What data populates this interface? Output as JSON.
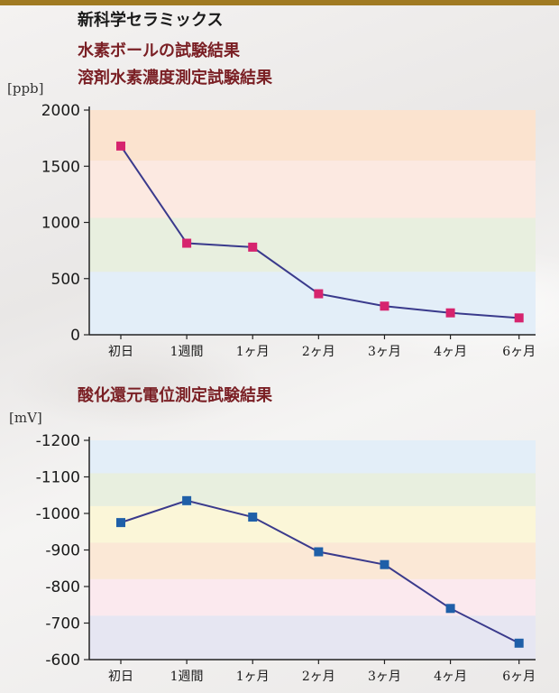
{
  "header": {
    "brand": "新科学セラミックス",
    "subtitle": "水素ボールの試験結果"
  },
  "colors": {
    "top_bar": "#a07a22",
    "title_red": "#7a1f24",
    "line": "#3a3a8c",
    "marker_pink": "#d6246e",
    "marker_blue": "#1f5fa8"
  },
  "chart_data": [
    {
      "type": "line",
      "title": "溶剤水素濃度測定試験結果",
      "unit_label": "[ppb]",
      "categories": [
        "初日",
        "1週間",
        "1ヶ月",
        "2ヶ月",
        "3ヶ月",
        "4ヶ月",
        "6ヶ月"
      ],
      "values": [
        1680,
        815,
        780,
        365,
        255,
        195,
        150
      ],
      "ylim": [
        0,
        2000
      ],
      "yticks": [
        "2000",
        "1500",
        "1000",
        "500",
        "0"
      ],
      "ytick_values": [
        2000,
        1500,
        1000,
        500,
        0
      ],
      "bands": [
        {
          "from": 1550,
          "to": 2000,
          "color": "#fbe3cf"
        },
        {
          "from": 1040,
          "to": 1550,
          "color": "#fce9e1"
        },
        {
          "from": 560,
          "to": 1040,
          "color": "#e8efdf"
        },
        {
          "from": 0,
          "to": 560,
          "color": "#e3eef8"
        }
      ],
      "marker": "square",
      "grid": false
    },
    {
      "type": "line",
      "title": "酸化還元電位測定試験結果",
      "unit_label": "[mV]",
      "categories": [
        "初日",
        "1週間",
        "1ヶ月",
        "2ヶ月",
        "3ヶ月",
        "4ヶ月",
        "6ヶ月"
      ],
      "values": [
        -975,
        -1035,
        -990,
        -895,
        -860,
        -740,
        -645
      ],
      "ylim": [
        -1200,
        -600
      ],
      "reversed_axis": true,
      "yticks": [
        "-1200",
        "-1100",
        "-1000",
        "-900",
        "-800",
        "-700",
        "-600"
      ],
      "ytick_values": [
        -1200,
        -1100,
        -1000,
        -900,
        -800,
        -700,
        -600
      ],
      "bands": [
        {
          "from": -1200,
          "to": -1110,
          "color": "#e3eef8"
        },
        {
          "from": -1110,
          "to": -1020,
          "color": "#e8efdf"
        },
        {
          "from": -1020,
          "to": -920,
          "color": "#fbf6d8"
        },
        {
          "from": -920,
          "to": -820,
          "color": "#fbe8d6"
        },
        {
          "from": -820,
          "to": -720,
          "color": "#fbe9ee"
        },
        {
          "from": -720,
          "to": -600,
          "color": "#e6e6f2"
        }
      ],
      "marker": "square",
      "grid": false
    }
  ]
}
